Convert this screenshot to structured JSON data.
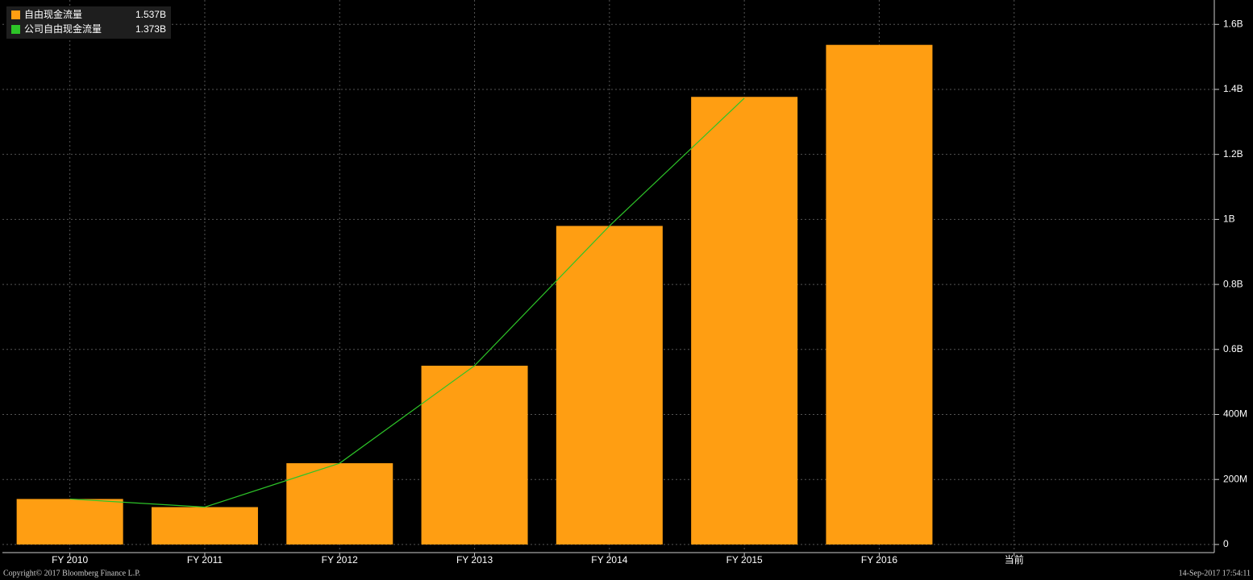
{
  "chart_data": {
    "type": "bar",
    "categories": [
      "FY 2010",
      "FY 2011",
      "FY 2012",
      "FY 2013",
      "FY 2014",
      "FY 2015",
      "FY 2016",
      "当前"
    ],
    "series": [
      {
        "name": "自由现金流量",
        "color": "#ff9e12",
        "type": "bar",
        "last_label": "1.537B",
        "values": [
          0.14,
          0.115,
          0.25,
          0.55,
          0.98,
          1.377,
          1.537,
          null
        ]
      },
      {
        "name": "公司自由现金流量",
        "color": "#2dc428",
        "type": "line",
        "last_label": "1.373B",
        "values": [
          0.14,
          0.115,
          0.25,
          0.55,
          0.98,
          1.373,
          null,
          null
        ]
      }
    ],
    "ylim": [
      -0.025,
      1.675
    ],
    "yticks": [
      0,
      {
        "value": 0.2,
        "label": "200M"
      },
      {
        "value": 0.4,
        "label": "400M"
      },
      {
        "value": 0.6,
        "label": "0.6B"
      },
      {
        "value": 0.8,
        "label": "0.8B"
      },
      {
        "value": 1,
        "label": "1B"
      },
      {
        "value": 1.2,
        "label": "1.2B"
      },
      {
        "value": 1.4,
        "label": "1.4B"
      },
      {
        "value": 1.6,
        "label": "1.6B"
      }
    ],
    "grid": true,
    "footer_left": "Copyright© 2017 Bloomberg Finance L.P.",
    "footer_right": "14-Sep-2017 17:54:11"
  }
}
